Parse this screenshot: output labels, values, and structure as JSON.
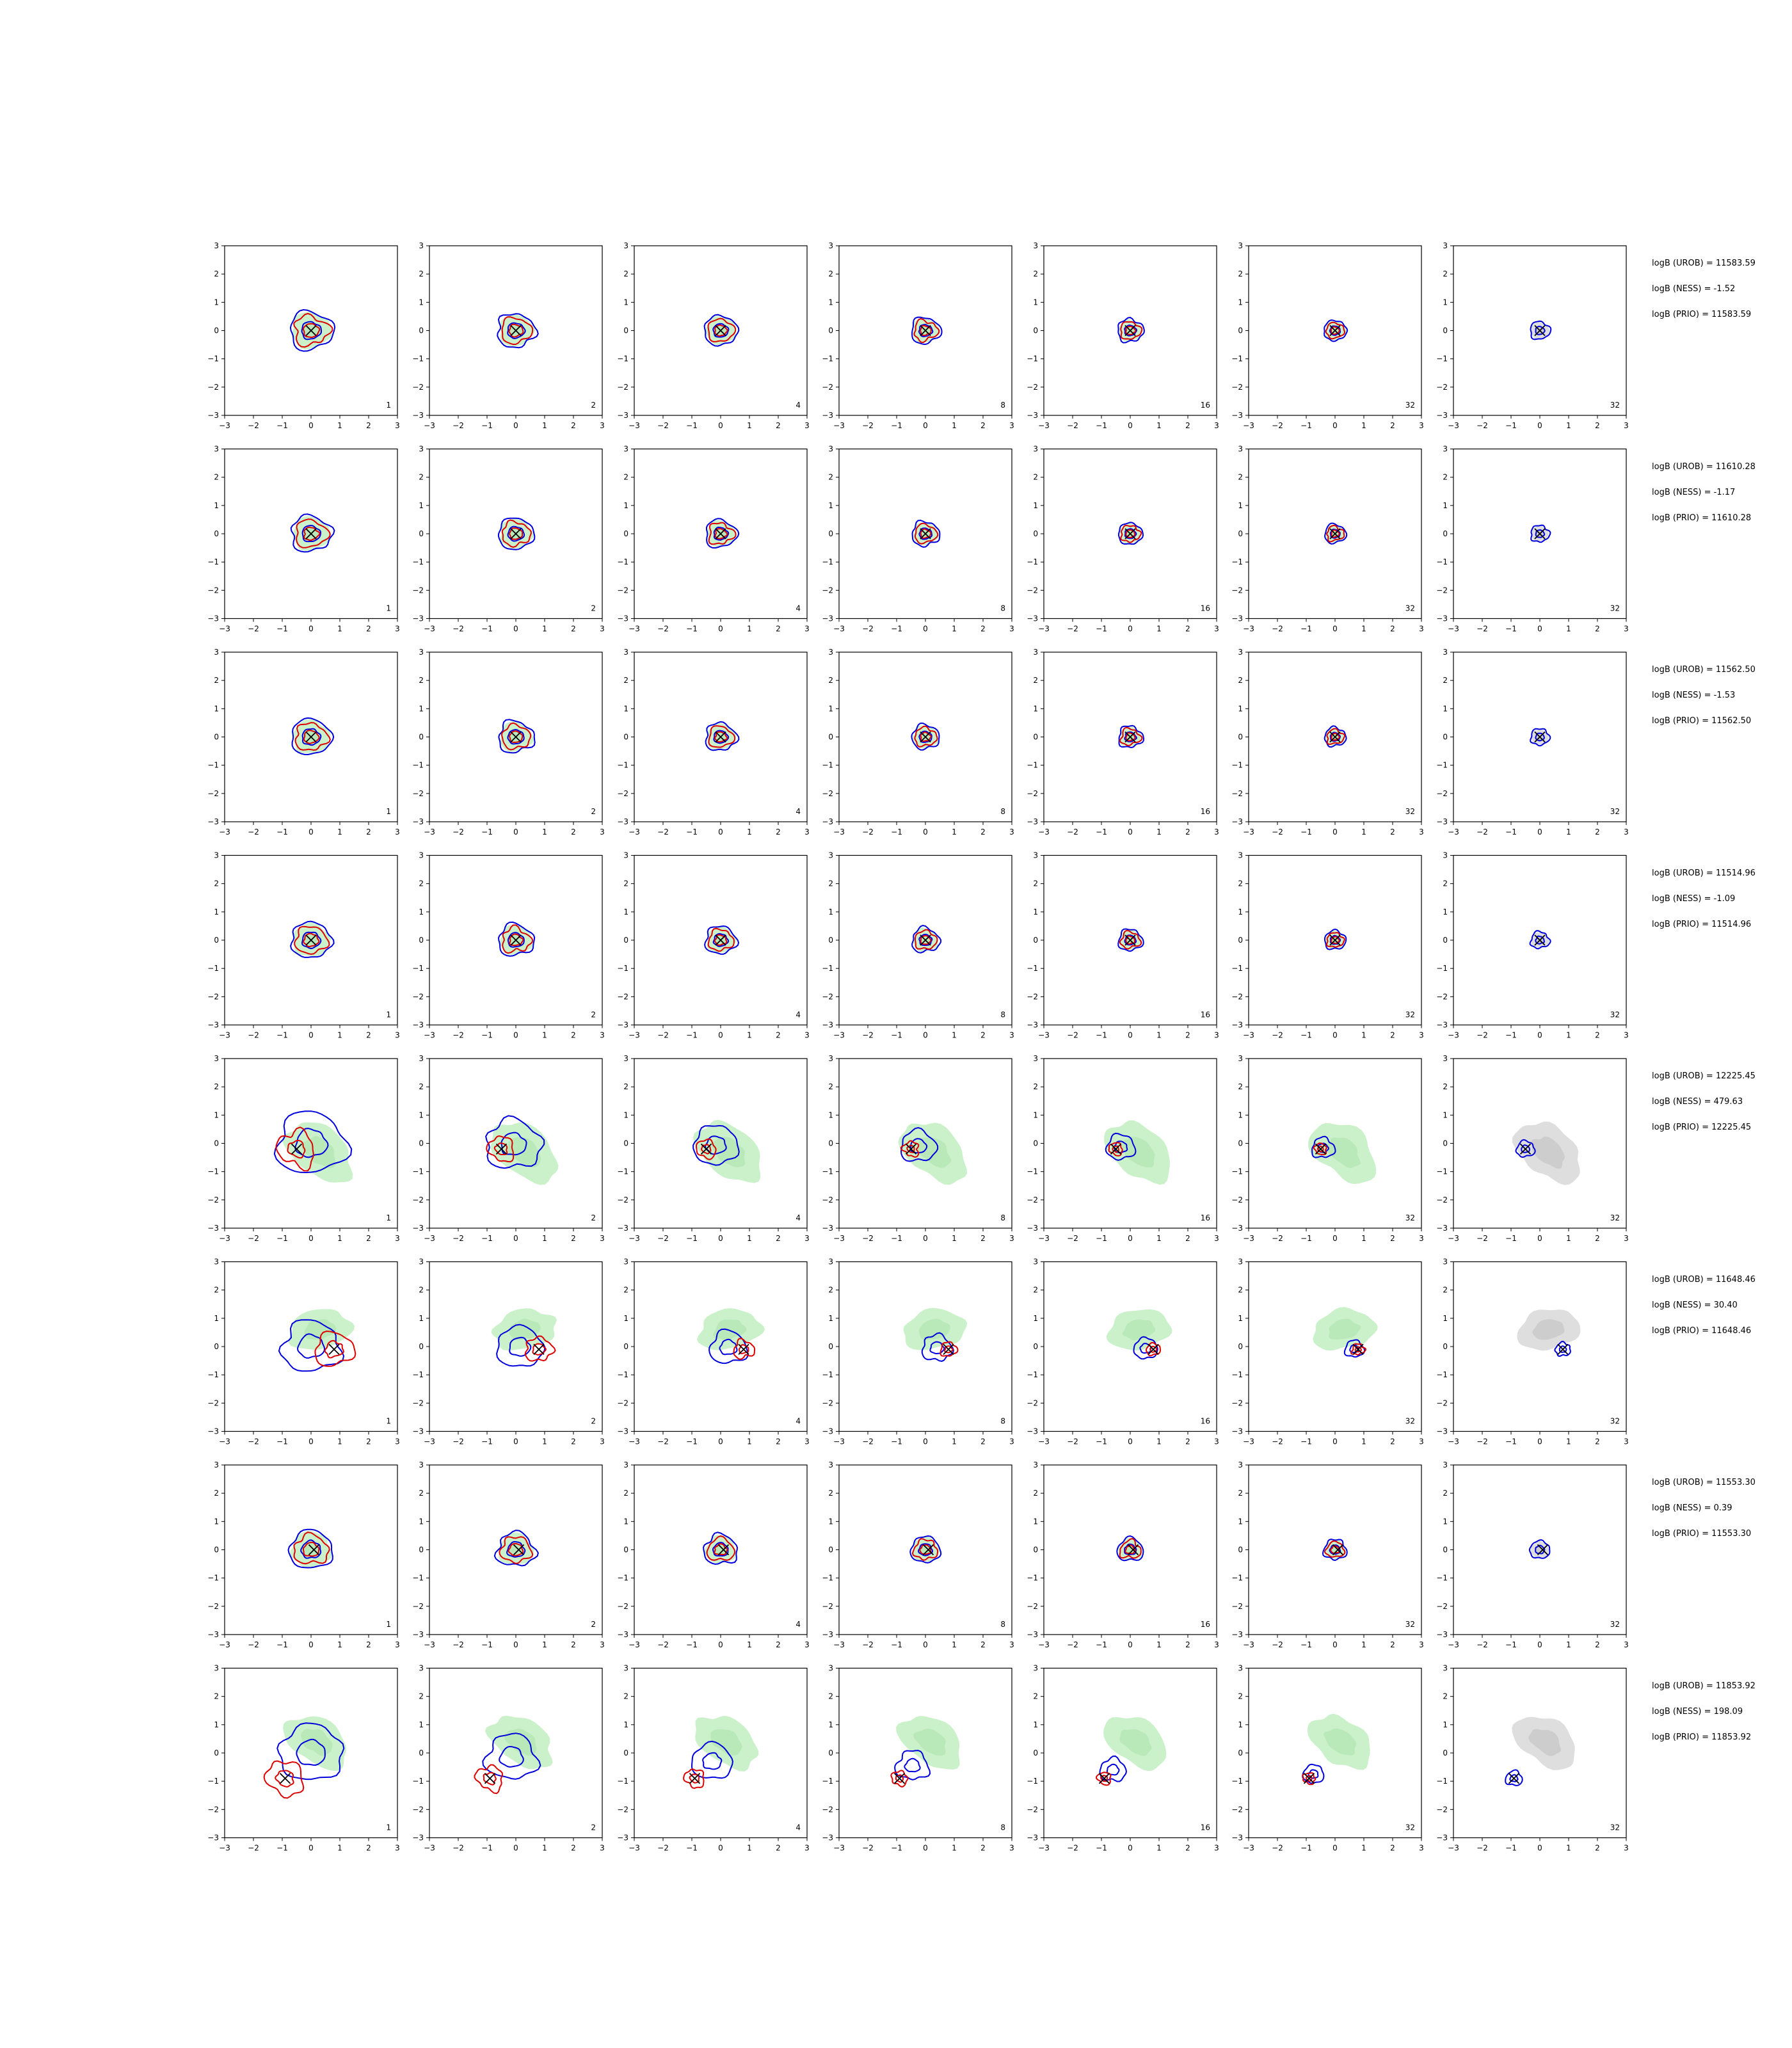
{
  "chart_data": {
    "type": "contour-grid",
    "rows": 8,
    "cols": 7,
    "axis": {
      "xlim": [
        -3,
        3
      ],
      "ylim": [
        -3,
        3
      ],
      "ticks": [
        "−3",
        "−2",
        "−1",
        "0",
        "1",
        "2",
        "3"
      ]
    },
    "panel_labels": [
      "1",
      "2",
      "4",
      "8",
      "16",
      "32",
      "32"
    ],
    "colors": {
      "outer_contour": "#0000dd",
      "inner_contour": "#dd0000",
      "fill": "#c8f0c8",
      "fill_last": "#dcdcdc",
      "marker": "#000000"
    },
    "rows_data": [
      {
        "stats": [
          "logB (UROB) = 11583.59",
          "logB (NESS) = -1.52",
          "logB (PRIO) = 11583.59"
        ],
        "marker": [
          0,
          0
        ],
        "center": [
          0,
          0
        ],
        "spread": 0.75,
        "tilt": 0,
        "fill_offset": [
          0,
          0
        ],
        "scenario": "centered"
      },
      {
        "stats": [
          "logB (UROB) = 11610.28",
          "logB (NESS) = -1.17",
          "logB (PRIO) = 11610.28"
        ],
        "marker": [
          0,
          0
        ],
        "center": [
          0,
          0
        ],
        "spread": 0.7,
        "tilt": 0,
        "fill_offset": [
          0,
          0
        ],
        "scenario": "centered"
      },
      {
        "stats": [
          "logB (UROB) = 11562.50",
          "logB (NESS) = -1.53",
          "logB (PRIO) = 11562.50"
        ],
        "marker": [
          0,
          0
        ],
        "center": [
          0,
          0
        ],
        "spread": 0.7,
        "tilt": 0,
        "fill_offset": [
          0,
          0
        ],
        "scenario": "centered"
      },
      {
        "stats": [
          "logB (UROB) = 11514.96",
          "logB (NESS) = -1.09",
          "logB (PRIO) = 11514.96"
        ],
        "marker": [
          0,
          0
        ],
        "center": [
          0,
          0
        ],
        "spread": 0.7,
        "tilt": 0,
        "fill_offset": [
          0,
          0
        ],
        "scenario": "centered"
      },
      {
        "stats": [
          "logB (UROB) = 12225.45",
          "logB (NESS) = 479.63",
          "logB (PRIO) = 12225.45"
        ],
        "marker": [
          -0.5,
          -0.2
        ],
        "center": [
          0,
          0
        ],
        "spread": 1.2,
        "tilt": -0.7,
        "fill_offset": [
          0.3,
          -0.3
        ],
        "scenario": "shifted"
      },
      {
        "stats": [
          "logB (UROB) = 11648.46",
          "logB (NESS) = 30.40",
          "logB (PRIO) = 11648.46"
        ],
        "marker": [
          0.8,
          -0.1
        ],
        "center": [
          0,
          0
        ],
        "spread": 1.0,
        "tilt": 0.2,
        "fill_offset": [
          0.3,
          0.6
        ],
        "scenario": "shifted"
      },
      {
        "stats": [
          "logB (UROB) = 11553.30",
          "logB (NESS) = 0.39",
          "logB (PRIO) = 11553.30"
        ],
        "marker": [
          0.1,
          0
        ],
        "center": [
          0,
          0
        ],
        "spread": 0.75,
        "tilt": 0,
        "fill_offset": [
          0,
          0
        ],
        "scenario": "centered"
      },
      {
        "stats": [
          "logB (UROB) = 11853.92",
          "logB (NESS) = 198.09",
          "logB (PRIO) = 11853.92"
        ],
        "marker": [
          -0.9,
          -0.9
        ],
        "center": [
          0,
          0
        ],
        "spread": 1.1,
        "tilt": -0.6,
        "fill_offset": [
          0.2,
          0.4
        ],
        "scenario": "shifted"
      }
    ]
  }
}
